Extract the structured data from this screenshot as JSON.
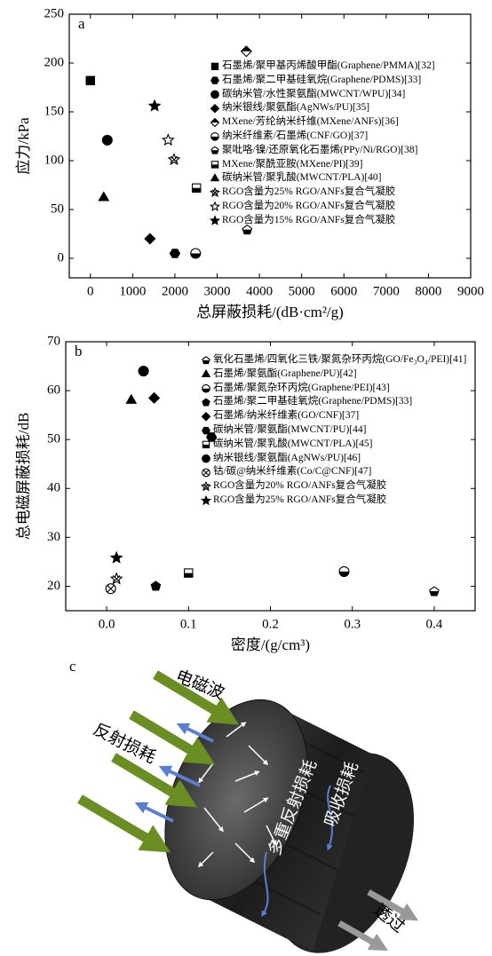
{
  "chart_data": [
    {
      "type": "scatter",
      "panel_label": "a",
      "xlabel": "总屏蔽损耗/(dB·cm²/g)",
      "ylabel": "应力/kPa",
      "xlim": [
        -500,
        9000
      ],
      "ylim": [
        -20,
        250
      ],
      "xticks": [
        0,
        1000,
        2000,
        3000,
        4000,
        5000,
        6000,
        7000,
        8000,
        9000
      ],
      "yticks": [
        0,
        50,
        100,
        150,
        200,
        250
      ],
      "series": [
        {
          "name": "石墨烯/聚甲基丙烯酸甲酯(Graphene/PMMA)[32]",
          "marker": "square",
          "x": [
            0
          ],
          "values": [
            182
          ]
        },
        {
          "name": "石墨烯/聚二甲基硅氧烷(Graphene/PDMS)[33]",
          "marker": "hexagon",
          "x": [
            2000
          ],
          "values": [
            5
          ]
        },
        {
          "name": "碳纳米管/水性聚氨酯(MWCNT/WPU)[34]",
          "marker": "circle",
          "x": [
            400
          ],
          "values": [
            121
          ]
        },
        {
          "name": "纳米银线/聚氨酯(AgNWs/PU)[35]",
          "marker": "diamond",
          "x": [
            1410
          ],
          "values": [
            20
          ]
        },
        {
          "name": "MXene/芳纶纳米纤维(MXene/ANFs)[36]",
          "marker": "diamond-half",
          "x": [
            3690
          ],
          "values": [
            212
          ]
        },
        {
          "name": "纳米纤维素/石墨烯(CNF/GO)[37]",
          "marker": "circle-half",
          "x": [
            2490
          ],
          "values": [
            5
          ]
        },
        {
          "name": "聚吡咯/镍/还原氧化石墨烯(PPy/Ni/RGO)[38]",
          "marker": "pentagon-half",
          "x": [
            3710
          ],
          "values": [
            29
          ]
        },
        {
          "name": "MXene/聚酰亚胺(MXene/PI)[39]",
          "marker": "square-half",
          "x": [
            2510
          ],
          "values": [
            72
          ]
        },
        {
          "name": "碳纳米管/聚乳酸(MWCNT/PLA)[40]",
          "marker": "triangle",
          "x": [
            316
          ],
          "values": [
            62
          ]
        },
        {
          "name": "RGO含量为25% RGO/ANFs复合气凝胶",
          "marker": "star-x",
          "x": [
            1980
          ],
          "values": [
            101
          ]
        },
        {
          "name": "RGO含量为20% RGO/ANFs复合气凝胶",
          "marker": "star-open",
          "x": [
            1840
          ],
          "values": [
            121
          ]
        },
        {
          "name": "RGO含量为15% RGO/ANFs复合气凝胶",
          "marker": "star",
          "x": [
            1520
          ],
          "values": [
            156
          ]
        }
      ]
    },
    {
      "type": "scatter",
      "panel_label": "b",
      "xlabel": "密度/(g/cm³)",
      "ylabel": "总电磁屏蔽损耗/dB",
      "xlim": [
        -0.05,
        0.45
      ],
      "ylim": [
        15,
        70
      ],
      "xticks": [
        {
          "value": 0,
          "label": "0.0"
        },
        0.1,
        0.2,
        0.3,
        0.4
      ],
      "yticks": [
        20,
        30,
        40,
        50,
        60,
        70
      ],
      "series": [
        {
          "name": "氧化石墨烯/四氧化三铁/聚氮杂环丙烷(GO/Fe₃O₄/PEI)[41]",
          "marker": "pentagon-half",
          "x": [
            0.4
          ],
          "values": [
            18.9
          ]
        },
        {
          "name": "石墨烯/聚氨酯(Graphene/PU)[42]",
          "marker": "triangle",
          "x": [
            0.03
          ],
          "values": [
            58
          ]
        },
        {
          "name": "石墨烯/聚氮杂环丙烷(Graphene/PEI)[43]",
          "marker": "circle-half",
          "x": [
            0.29
          ],
          "values": [
            23
          ]
        },
        {
          "name": "石墨烯/聚二甲基硅氧烷(Graphene/PDMS)[33]",
          "marker": "pentagon",
          "x": [
            0.06
          ],
          "values": [
            20
          ]
        },
        {
          "name": "石墨烯/纳米纤维素(GO/CNF)[37]",
          "marker": "diamond",
          "x": [
            0.058
          ],
          "values": [
            58.5
          ]
        },
        {
          "name": "碳纳米管/聚氨酯(MWCNT/PU)[44]",
          "marker": "hexagon",
          "x": [
            0.128
          ],
          "values": [
            50.5
          ]
        },
        {
          "name": "碳纳米管/聚乳酸(MWCNT/PLA)[45]",
          "marker": "square-half",
          "x": [
            0.1
          ],
          "values": [
            22.7
          ]
        },
        {
          "name": "纳米银线/聚氨酯(AgNWs/PU)[46]",
          "marker": "circle",
          "x": [
            0.045
          ],
          "values": [
            64
          ]
        },
        {
          "name": "钴/碳@纳米纤维素(Co/C@CNF)[47]",
          "marker": "circle-x",
          "x": [
            0.005
          ],
          "values": [
            19.5
          ]
        },
        {
          "name": "RGO含量为20% RGO/ANFs复合气凝胶",
          "marker": "star-x",
          "x": [
            0.012
          ],
          "values": [
            21.5
          ]
        },
        {
          "name": "RGO含量为25% RGO/ANFs复合气凝胶",
          "marker": "star",
          "x": [
            0.012
          ],
          "values": [
            25.8
          ]
        }
      ]
    }
  ],
  "diagram": {
    "panel_label": "c",
    "incident": "电磁波",
    "reflection": "反射损耗",
    "multiple_reflection": "多重反射损耗",
    "absorption": "吸收损耗",
    "transmission": "透过"
  }
}
